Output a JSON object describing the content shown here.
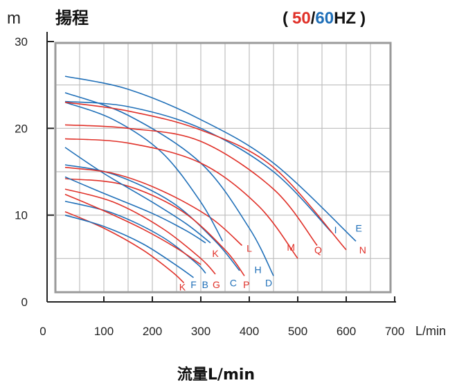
{
  "header": {
    "y_unit": "m",
    "title": "揚程",
    "hz_open": "(",
    "hz_50": "50",
    "hz_slash": "/",
    "hz_60": "60",
    "hz_suffix": "HZ",
    "hz_close": ")"
  },
  "chart_data": {
    "type": "line",
    "title": "揚程",
    "xlabel": "流量L/min",
    "x_unit": "L/min",
    "ylabel": "m",
    "xlim": [
      0,
      700
    ],
    "ylim": [
      0,
      30
    ],
    "x_ticks": [
      0,
      100,
      200,
      300,
      400,
      500,
      600,
      700
    ],
    "y_ticks": [
      0,
      10,
      20,
      30
    ],
    "x_tick_labels": [
      "0",
      "100",
      "200",
      "300",
      "400",
      "500",
      "600",
      "700"
    ],
    "y_tick_labels": [
      "0",
      "10",
      "20",
      "30"
    ],
    "grid": true,
    "colors": {
      "50hz": "#e03028",
      "60hz": "#1f6fb8",
      "grid": "#bdbdbd",
      "frame": "#9a9a9a"
    },
    "legend": "top-right",
    "series": [
      {
        "label": "K",
        "freq": "50hz",
        "x": [
          20,
          100,
          180,
          240,
          265
        ],
        "y": [
          10.4,
          8.5,
          6.0,
          3.5,
          2.2
        ]
      },
      {
        "label": "F",
        "freq": "60hz",
        "x": [
          20,
          100,
          180,
          250,
          285
        ],
        "y": [
          10.0,
          8.7,
          6.7,
          4.2,
          2.8
        ]
      },
      {
        "label": "B",
        "freq": "60hz",
        "x": [
          20,
          120,
          220,
          290,
          310
        ],
        "y": [
          11.6,
          10.2,
          7.5,
          4.5,
          3.3
        ]
      },
      {
        "label": "G",
        "freq": "50hz",
        "x": [
          20,
          120,
          220,
          300,
          330
        ],
        "y": [
          13.0,
          11.5,
          8.5,
          5.0,
          3.2
        ]
      },
      {
        "label": "C",
        "freq": "60hz",
        "x": [
          20,
          120,
          240,
          330,
          380
        ],
        "y": [
          15.8,
          14.7,
          11.5,
          7.0,
          3.6
        ]
      },
      {
        "label": "P",
        "freq": "50hz",
        "x": [
          20,
          140,
          260,
          350,
          390
        ],
        "y": [
          14.2,
          13.5,
          10.5,
          6.0,
          3.0
        ]
      },
      {
        "label": "K",
        "freq": "50hz",
        "x": [
          20,
          100,
          180,
          250,
          300
        ],
        "y": [
          12.4,
          10.5,
          8.4,
          6.2,
          4.3
        ]
      },
      {
        "label": "",
        "freq": "60hz",
        "x": [
          20,
          100,
          200,
          270,
          310
        ],
        "y": [
          14.4,
          12.5,
          10.2,
          8.2,
          6.8
        ]
      },
      {
        "label": "",
        "freq": "60hz",
        "x": [
          20,
          100,
          200,
          270,
          320
        ],
        "y": [
          17.8,
          14.8,
          11.5,
          9.0,
          6.8
        ]
      },
      {
        "label": "L",
        "freq": "50hz",
        "x": [
          20,
          120,
          220,
          320,
          385
        ],
        "y": [
          15.5,
          14.8,
          12.8,
          9.7,
          6.5
        ]
      },
      {
        "label": "D",
        "freq": "60hz",
        "x": [
          20,
          150,
          300,
          400,
          450
        ],
        "y": [
          24.1,
          21.5,
          16.0,
          8.5,
          3.0
        ]
      },
      {
        "label": "H",
        "freq": "60hz",
        "x": [
          20,
          120,
          220,
          300,
          345
        ],
        "y": [
          23.0,
          21.0,
          17.2,
          11.5,
          7.0
        ]
      },
      {
        "label": "M",
        "freq": "50hz",
        "x": [
          20,
          150,
          300,
          420,
          500
        ],
        "y": [
          18.8,
          18.3,
          16.0,
          11.0,
          5.0
        ]
      },
      {
        "label": "Q",
        "freq": "50hz",
        "x": [
          20,
          150,
          300,
          450,
          540
        ],
        "y": [
          20.4,
          20.0,
          18.5,
          13.0,
          6.5
        ]
      },
      {
        "label": "I",
        "freq": "60hz",
        "x": [
          20,
          150,
          300,
          450,
          570
        ],
        "y": [
          23.1,
          22.5,
          20.0,
          15.0,
          8.0
        ]
      },
      {
        "label": "N",
        "freq": "50hz",
        "x": [
          20,
          150,
          300,
          450,
          600
        ],
        "y": [
          23.0,
          22.0,
          19.8,
          15.5,
          6.0
        ]
      },
      {
        "label": "E",
        "freq": "60hz",
        "x": [
          20,
          150,
          300,
          450,
          620
        ],
        "y": [
          26.0,
          24.5,
          21.0,
          16.0,
          7.0
        ]
      }
    ],
    "curve_labels": [
      {
        "text": "K",
        "freq": "50hz",
        "x": 262,
        "y": 1.3
      },
      {
        "text": "F",
        "freq": "60hz",
        "x": 285,
        "y": 1.6
      },
      {
        "text": "B",
        "freq": "60hz",
        "x": 309,
        "y": 1.6
      },
      {
        "text": "G",
        "freq": "50hz",
        "x": 332,
        "y": 1.6
      },
      {
        "text": "C",
        "freq": "60hz",
        "x": 367,
        "y": 1.8
      },
      {
        "text": "P",
        "freq": "50hz",
        "x": 394,
        "y": 1.6
      },
      {
        "text": "D",
        "freq": "60hz",
        "x": 440,
        "y": 1.8
      },
      {
        "text": "H",
        "freq": "60hz",
        "x": 418,
        "y": 3.3
      },
      {
        "text": "K",
        "freq": "50hz",
        "x": 330,
        "y": 5.2
      },
      {
        "text": "L",
        "freq": "50hz",
        "x": 400,
        "y": 5.8
      },
      {
        "text": "M",
        "freq": "50hz",
        "x": 486,
        "y": 5.9
      },
      {
        "text": "Q",
        "freq": "50hz",
        "x": 542,
        "y": 5.6
      },
      {
        "text": "I",
        "freq": "60hz",
        "x": 578,
        "y": 7.9
      },
      {
        "text": "E",
        "freq": "60hz",
        "x": 626,
        "y": 8.1
      },
      {
        "text": "N",
        "freq": "50hz",
        "x": 634,
        "y": 5.6
      }
    ]
  }
}
